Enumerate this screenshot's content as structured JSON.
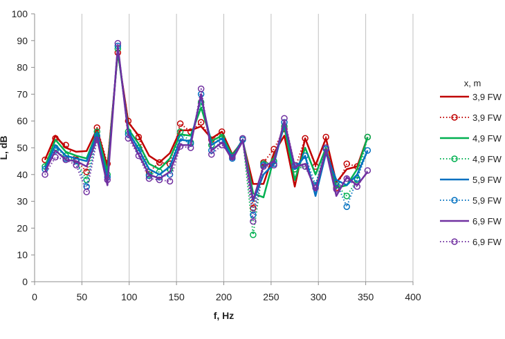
{
  "chart_data": {
    "type": "line",
    "title": "",
    "xlabel": "f, Hz",
    "ylabel": "L, dB",
    "xlim": [
      0,
      400
    ],
    "ylim": [
      0,
      100
    ],
    "x_ticks": [
      0,
      50,
      100,
      150,
      200,
      250,
      300,
      350,
      400
    ],
    "y_ticks": [
      0,
      10,
      20,
      30,
      40,
      50,
      60,
      70,
      80,
      90,
      100
    ],
    "grid": "vertical",
    "legend_title": "x, m",
    "legend_position": "right",
    "x": [
      11,
      22,
      33,
      44,
      55,
      66,
      77,
      88,
      99,
      110,
      121,
      132,
      143,
      154,
      165,
      176,
      187,
      198,
      209,
      220,
      231,
      242,
      253,
      264,
      275,
      286,
      297,
      308,
      319,
      330,
      341,
      352
    ],
    "series": [
      {
        "name": "3,9 FW",
        "color": "#c00000",
        "style": "solid",
        "values": [
          45.5,
          54.5,
          50,
          48.5,
          48.8,
          57,
          43,
          85.5,
          59.5,
          54.5,
          47,
          44.5,
          48,
          56.5,
          56.5,
          58,
          53.5,
          56,
          47.5,
          52.5,
          36.5,
          36.5,
          48,
          54.5,
          35.5,
          53.5,
          43.5,
          53.5,
          37,
          42,
          43,
          54
        ]
      },
      {
        "name": "3,9 FW",
        "color": "#c00000",
        "style": "dotted",
        "values": [
          45.5,
          53.5,
          51,
          45.5,
          41,
          57.5,
          44,
          85.5,
          60,
          54,
          41,
          44.5,
          44,
          59,
          56,
          59.5,
          53,
          56,
          47,
          53,
          27.5,
          44.5,
          49.5,
          57,
          42,
          53.5,
          43,
          54,
          35,
          44,
          43,
          54
        ]
      },
      {
        "name": "4,9 FW",
        "color": "#00b050",
        "style": "solid",
        "values": [
          43,
          53,
          48.5,
          47,
          46,
          56,
          41,
          86,
          57,
          51.5,
          44,
          42,
          46,
          55,
          54.5,
          65,
          52.5,
          54.5,
          47,
          53,
          33,
          31.5,
          46,
          58,
          38,
          50,
          40,
          50,
          35,
          36,
          42,
          54
        ]
      },
      {
        "name": "4,9 FW",
        "color": "#00b050",
        "style": "dotted",
        "values": [
          43,
          50,
          47,
          45,
          38,
          56,
          40,
          87,
          56,
          50,
          40,
          41,
          42,
          56,
          52,
          67,
          51,
          54,
          47,
          53,
          17.5,
          44,
          45,
          58,
          42,
          43,
          36,
          50,
          36,
          32,
          38,
          54
        ]
      },
      {
        "name": "5,9 FW",
        "color": "#0070c0",
        "style": "solid",
        "values": [
          42,
          51,
          47,
          46,
          45,
          55,
          38,
          87.5,
          56,
          49.5,
          42,
          40,
          43,
          53,
          52.5,
          69,
          51,
          53.5,
          46,
          53,
          30,
          40,
          44,
          59,
          42,
          47,
          32,
          48,
          38,
          36,
          40,
          49
        ]
      },
      {
        "name": "5,9 FW",
        "color": "#0070c0",
        "style": "dotted",
        "values": [
          42,
          49,
          46,
          45,
          35.5,
          54.5,
          39,
          88,
          55,
          49,
          39.5,
          39,
          40,
          53.5,
          51.5,
          70,
          49,
          52.5,
          46,
          53,
          25,
          43.5,
          44,
          59.5,
          43,
          47,
          36,
          49.5,
          37,
          28,
          38.5,
          49
        ]
      },
      {
        "name": "6,9 FW",
        "color": "#7030a0",
        "style": "solid",
        "values": [
          41,
          49,
          45.5,
          45,
          43,
          53.5,
          36,
          88,
          55,
          47.5,
          40,
          38.5,
          41,
          51,
          51,
          70,
          49,
          52,
          45.5,
          52.5,
          30.5,
          43,
          45,
          60,
          43,
          44,
          34,
          49,
          32,
          39,
          36,
          41
        ]
      },
      {
        "name": "6,9 FW",
        "color": "#7030a0",
        "style": "dotted",
        "values": [
          40,
          46.5,
          45.5,
          43.5,
          33.5,
          53,
          38,
          89,
          53.5,
          47,
          38.5,
          38,
          37.5,
          50.5,
          50,
          72,
          47.5,
          51,
          46.5,
          53.5,
          22.5,
          43,
          43.5,
          61,
          43.5,
          43,
          35,
          50,
          34.5,
          38.5,
          35.5,
          41.5
        ]
      }
    ]
  }
}
